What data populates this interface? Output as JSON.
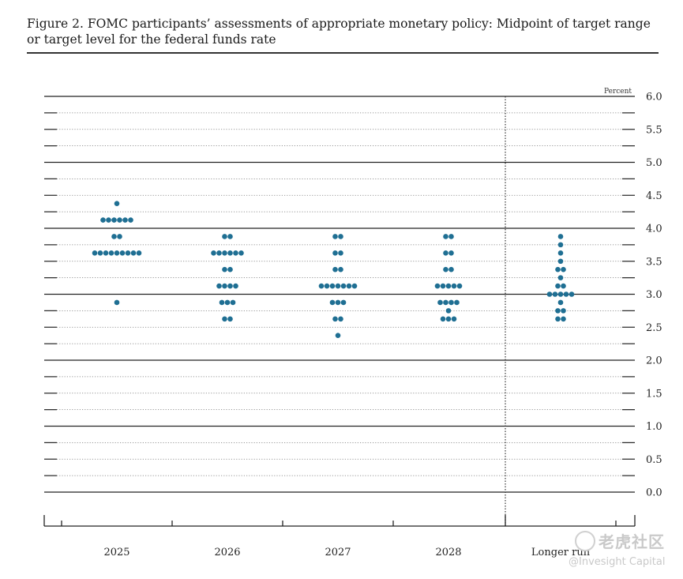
{
  "figure": {
    "title": "Figure 2. FOMC participants’ assessments of appropriate monetary policy: Midpoint of target range or target level for the federal funds rate"
  },
  "chart_data": {
    "type": "scatter",
    "unit_label": "Percent",
    "ylim": [
      0,
      6
    ],
    "yticks": [
      "0.0",
      "0.5",
      "1.0",
      "1.5",
      "2.0",
      "2.5",
      "3.0",
      "3.5",
      "4.0",
      "4.5",
      "5.0",
      "5.5",
      "6.0"
    ],
    "categories": [
      "2025",
      "2026",
      "2027",
      "2028",
      "Longer run"
    ],
    "dot_color": "#1f6f93",
    "dots": [
      [
        {
          "rate": 4.375,
          "count": 1
        },
        {
          "rate": 4.125,
          "count": 6
        },
        {
          "rate": 3.875,
          "count": 2
        },
        {
          "rate": 3.625,
          "count": 9
        },
        {
          "rate": 2.875,
          "count": 1
        }
      ],
      [
        {
          "rate": 3.875,
          "count": 2
        },
        {
          "rate": 3.625,
          "count": 6
        },
        {
          "rate": 3.375,
          "count": 2
        },
        {
          "rate": 3.125,
          "count": 4
        },
        {
          "rate": 2.875,
          "count": 3
        },
        {
          "rate": 2.625,
          "count": 2
        }
      ],
      [
        {
          "rate": 3.875,
          "count": 2
        },
        {
          "rate": 3.625,
          "count": 2
        },
        {
          "rate": 3.375,
          "count": 2
        },
        {
          "rate": 3.125,
          "count": 7
        },
        {
          "rate": 2.875,
          "count": 3
        },
        {
          "rate": 2.625,
          "count": 2
        },
        {
          "rate": 2.375,
          "count": 1
        }
      ],
      [
        {
          "rate": 3.875,
          "count": 2
        },
        {
          "rate": 3.625,
          "count": 2
        },
        {
          "rate": 3.375,
          "count": 2
        },
        {
          "rate": 3.125,
          "count": 5
        },
        {
          "rate": 2.875,
          "count": 4
        },
        {
          "rate": 2.75,
          "count": 1
        },
        {
          "rate": 2.625,
          "count": 3
        }
      ],
      [
        {
          "rate": 3.875,
          "count": 1
        },
        {
          "rate": 3.75,
          "count": 1
        },
        {
          "rate": 3.625,
          "count": 1
        },
        {
          "rate": 3.5,
          "count": 1
        },
        {
          "rate": 3.375,
          "count": 2
        },
        {
          "rate": 3.25,
          "count": 1
        },
        {
          "rate": 3.125,
          "count": 2
        },
        {
          "rate": 3.0,
          "count": 5
        },
        {
          "rate": 2.875,
          "count": 1
        },
        {
          "rate": 2.75,
          "count": 2
        },
        {
          "rate": 2.625,
          "count": 2
        }
      ]
    ],
    "grid": {
      "major_every": 1.0,
      "dotted_minor": true
    },
    "divider_before_category": "Longer run"
  },
  "watermark": {
    "logo_text": "老虎社区",
    "credit": "@Invesight Capital"
  }
}
